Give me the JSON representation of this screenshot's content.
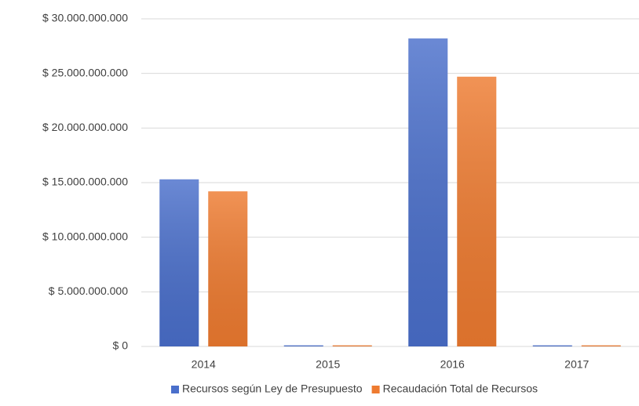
{
  "chart_data": {
    "type": "bar",
    "categories": [
      "2014",
      "2015",
      "2016",
      "2017"
    ],
    "series": [
      {
        "name": "Recursos según Ley de Presupuesto",
        "color": "#4a6fcb",
        "values": [
          15300000000,
          100000000,
          28200000000,
          100000000
        ]
      },
      {
        "name": "Recaudación Total de Recursos",
        "color": "#ee7b30",
        "values": [
          14200000000,
          100000000,
          24700000000,
          100000000
        ]
      }
    ],
    "ylim": [
      0,
      30000000000
    ],
    "yticks": [
      {
        "value": 0,
        "label": "$ 0"
      },
      {
        "value": 5000000000,
        "label": "$ 5.000.000.000"
      },
      {
        "value": 10000000000,
        "label": "$ 10.000.000.000"
      },
      {
        "value": 15000000000,
        "label": "$ 15.000.000.000"
      },
      {
        "value": 20000000000,
        "label": "$ 20.000.000.000"
      },
      {
        "value": 25000000000,
        "label": "$ 25.000.000.000"
      },
      {
        "value": 30000000000,
        "label": "$ 30.000.000.000"
      }
    ],
    "grid": true,
    "legend": "bottom"
  }
}
